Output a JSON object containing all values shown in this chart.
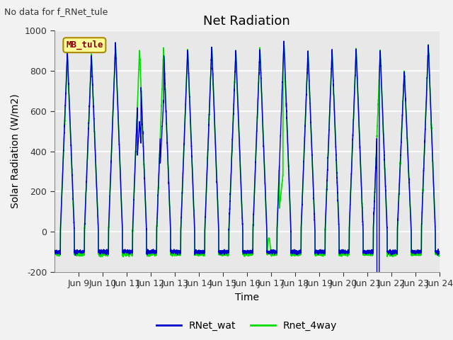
{
  "title": "Net Radiation",
  "xlabel": "Time",
  "ylabel": "Solar Radiation (W/m2)",
  "top_label": "No data for f_RNet_tule",
  "legend_label": "MB_tule",
  "ylim": [
    -200,
    1000
  ],
  "xlim_start": 8.0,
  "xlim_end": 24.0,
  "xtick_labels": [
    "Jun 9",
    "Jun 10",
    "Jun 11",
    "Jun 12",
    "Jun 13",
    "Jun 14",
    "Jun 15",
    "Jun 16",
    "Jun 17",
    "Jun 18",
    "Jun 19",
    "Jun 20",
    "Jun 21",
    "Jun 22",
    "Jun 23",
    "Jun 24"
  ],
  "xtick_positions": [
    9,
    10,
    11,
    12,
    13,
    14,
    15,
    16,
    17,
    18,
    19,
    20,
    21,
    22,
    23,
    24
  ],
  "ytick_positions": [
    -200,
    0,
    200,
    400,
    600,
    800,
    1000
  ],
  "line1_color": "#0000cc",
  "line2_color": "#00dd00",
  "line1_label": "RNet_wat",
  "line2_label": "Rnet_4way",
  "background_color": "#e8e8e8",
  "grid_color": "#ffffff",
  "title_fontsize": 13,
  "axis_fontsize": 10,
  "tick_fontsize": 9,
  "fig_bg": "#f2f2f2"
}
